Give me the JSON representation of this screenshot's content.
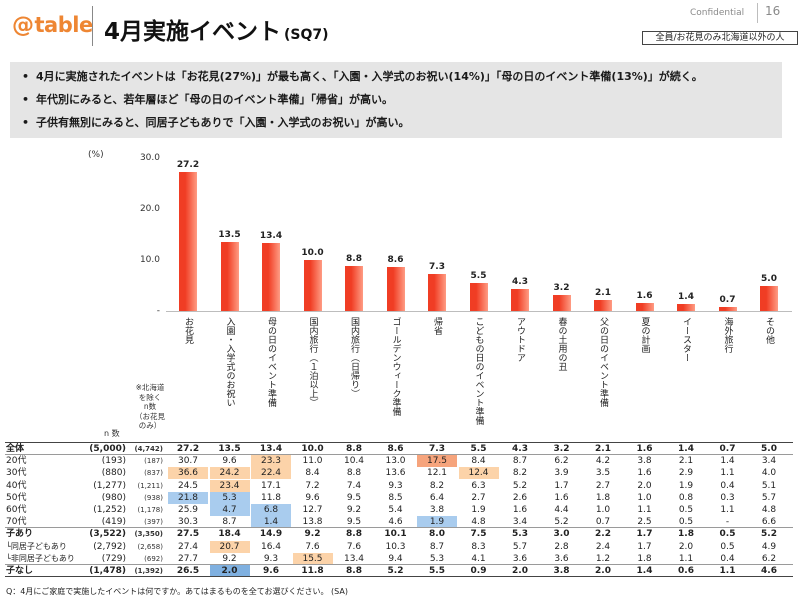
{
  "header": {
    "logo_mark": "@",
    "logo_text": "table",
    "brand_color": "#ee8633",
    "title": "4月実施イベント",
    "title_code": "(SQ7)",
    "confidential": "Confidential",
    "page_number": "16",
    "target_note": "全員/お花見のみ北海道以外の人"
  },
  "bullets": [
    "4月に実施されたイベントは「お花見(27%)」が最も高く、「入園・入学式のお祝い(14%)」「母の日のイベント準備(13%)」が続く。",
    "年代別にみると、若年層ほど「母の日のイベント準備」「帰省」が高い。",
    "子供有無別にみると、同居子どもありで「入園・入学式のお祝い」が高い。"
  ],
  "chart_data": {
    "type": "bar",
    "ylabel": "(%)",
    "ylim": [
      0,
      30
    ],
    "yticks": [
      {
        "value": 30,
        "label": "30.0"
      },
      {
        "value": 20,
        "label": "20.0"
      },
      {
        "value": 10,
        "label": "10.0"
      },
      {
        "value": 0,
        "label": "-"
      }
    ],
    "grid": false,
    "categories": [
      "お花見",
      "入園・入学式のお祝い",
      "母の日のイベント準備",
      "国内旅行（１泊以上）",
      "国内旅行（日帰り）",
      "ゴールデンウィーク準備",
      "帰省",
      "こどもの日のイベント準備",
      "アウトドア",
      "春の土用の丑",
      "父の日のイベント準備",
      "夏の計画",
      "イースター",
      "海外旅行",
      "その他"
    ],
    "values": [
      27.2,
      13.5,
      13.4,
      10.0,
      8.8,
      8.6,
      7.3,
      5.5,
      4.3,
      3.2,
      2.1,
      1.6,
      1.4,
      0.7,
      5.0
    ],
    "value_labels": [
      "27.2",
      "13.5",
      "13.4",
      "10.0",
      "8.8",
      "8.6",
      "7.3",
      "5.5",
      "4.3",
      "3.2",
      "2.1",
      "1.6",
      "1.4",
      "0.7",
      "5.0"
    ],
    "colors": {
      "bar": "#f03d24",
      "bar_light": "#ff9c84"
    }
  },
  "table": {
    "n_label": "n 数",
    "n2_note": [
      "※北海道",
      "を除く",
      "n数",
      "（お花見",
      "のみ）"
    ],
    "rows": [
      {
        "label": "全体",
        "n": "(5,000)",
        "n2": "(4,742)",
        "values": [
          "27.2",
          "13.5",
          "13.4",
          "10.0",
          "8.8",
          "8.6",
          "7.3",
          "5.5",
          "4.3",
          "3.2",
          "2.1",
          "1.6",
          "1.4",
          "0.7",
          "5.0"
        ],
        "cell_colors": {}
      },
      {
        "label": "20代",
        "n": "(193)",
        "n2": "(187)",
        "values": [
          "30.7",
          "9.6",
          "23.3",
          "11.0",
          "10.4",
          "13.0",
          "17.5",
          "8.4",
          "8.7",
          "6.2",
          "4.2",
          "3.8",
          "2.1",
          "1.4",
          "3.4"
        ],
        "cell_colors": {
          "2": "#fcd3a9",
          "6": "#f6a47c"
        }
      },
      {
        "label": "30代",
        "n": "(880)",
        "n2": "(837)",
        "values": [
          "36.6",
          "24.2",
          "22.4",
          "8.4",
          "8.8",
          "13.6",
          "12.1",
          "12.4",
          "8.2",
          "3.9",
          "3.5",
          "1.6",
          "2.9",
          "1.1",
          "4.0"
        ],
        "cell_colors": {
          "0": "#fcd3a9",
          "1": "#fcd3a9",
          "2": "#fcd3a9",
          "7": "#fcd3a9"
        }
      },
      {
        "label": "40代",
        "n": "(1,277)",
        "n2": "(1,211)",
        "values": [
          "24.5",
          "23.4",
          "17.1",
          "7.2",
          "7.4",
          "9.3",
          "8.2",
          "6.3",
          "5.2",
          "1.7",
          "2.7",
          "2.0",
          "1.9",
          "0.4",
          "5.1"
        ],
        "cell_colors": {
          "1": "#fcd3a9"
        }
      },
      {
        "label": "50代",
        "n": "(980)",
        "n2": "(938)",
        "values": [
          "21.8",
          "5.3",
          "11.8",
          "9.6",
          "9.5",
          "8.5",
          "6.4",
          "2.7",
          "2.6",
          "1.6",
          "1.8",
          "1.0",
          "0.8",
          "0.3",
          "5.7"
        ],
        "cell_colors": {
          "0": "#a9ccee",
          "1": "#a9ccee"
        }
      },
      {
        "label": "60代",
        "n": "(1,252)",
        "n2": "(1,178)",
        "values": [
          "25.9",
          "4.7",
          "6.8",
          "12.7",
          "9.2",
          "5.4",
          "3.8",
          "1.9",
          "1.6",
          "4.4",
          "1.0",
          "1.1",
          "0.5",
          "1.1",
          "4.8"
        ],
        "cell_colors": {
          "1": "#a9ccee",
          "2": "#a9ccee"
        }
      },
      {
        "label": "70代",
        "n": "(419)",
        "n2": "(397)",
        "values": [
          "30.3",
          "8.7",
          "1.4",
          "13.8",
          "9.5",
          "4.6",
          "1.9",
          "4.8",
          "3.4",
          "5.2",
          "0.7",
          "2.5",
          "0.5",
          "-",
          "6.6"
        ],
        "cell_colors": {
          "2": "#a9ccee",
          "6": "#a9ccee"
        }
      },
      {
        "label": "子あり",
        "n": "(3,522)",
        "n2": "(3,350)",
        "values": [
          "27.5",
          "18.4",
          "14.9",
          "9.2",
          "8.8",
          "10.1",
          "8.0",
          "7.5",
          "5.3",
          "3.0",
          "2.2",
          "1.7",
          "1.8",
          "0.5",
          "5.2"
        ],
        "cell_colors": {}
      },
      {
        "label": "└同居子どもあり",
        "n": "(2,792)",
        "n2": "(2,658)",
        "values": [
          "27.4",
          "20.7",
          "16.4",
          "7.6",
          "7.6",
          "10.3",
          "8.7",
          "8.3",
          "5.7",
          "2.8",
          "2.4",
          "1.7",
          "2.0",
          "0.5",
          "4.9"
        ],
        "cell_colors": {
          "1": "#fcd3a9"
        }
      },
      {
        "label": "└非同居子どもあり",
        "n": "(729)",
        "n2": "(692)",
        "values": [
          "27.7",
          "9.2",
          "9.3",
          "15.5",
          "13.4",
          "9.4",
          "5.3",
          "4.1",
          "3.6",
          "3.6",
          "1.2",
          "1.8",
          "1.1",
          "0.4",
          "6.2"
        ],
        "cell_colors": {
          "3": "#fcd3a9"
        }
      },
      {
        "label": "子なし",
        "n": "(1,478)",
        "n2": "(1,392)",
        "values": [
          "26.5",
          "2.0",
          "9.6",
          "11.8",
          "8.8",
          "5.2",
          "5.5",
          "0.9",
          "2.0",
          "3.8",
          "2.0",
          "1.4",
          "0.6",
          "1.1",
          "4.6"
        ],
        "cell_colors": {
          "1": "#7fb0e0"
        }
      }
    ]
  },
  "footer": {
    "question": "Q：4月にご家庭で実施したイベントは何ですか。あてはまるものを全てお選びください。 (SA)"
  }
}
